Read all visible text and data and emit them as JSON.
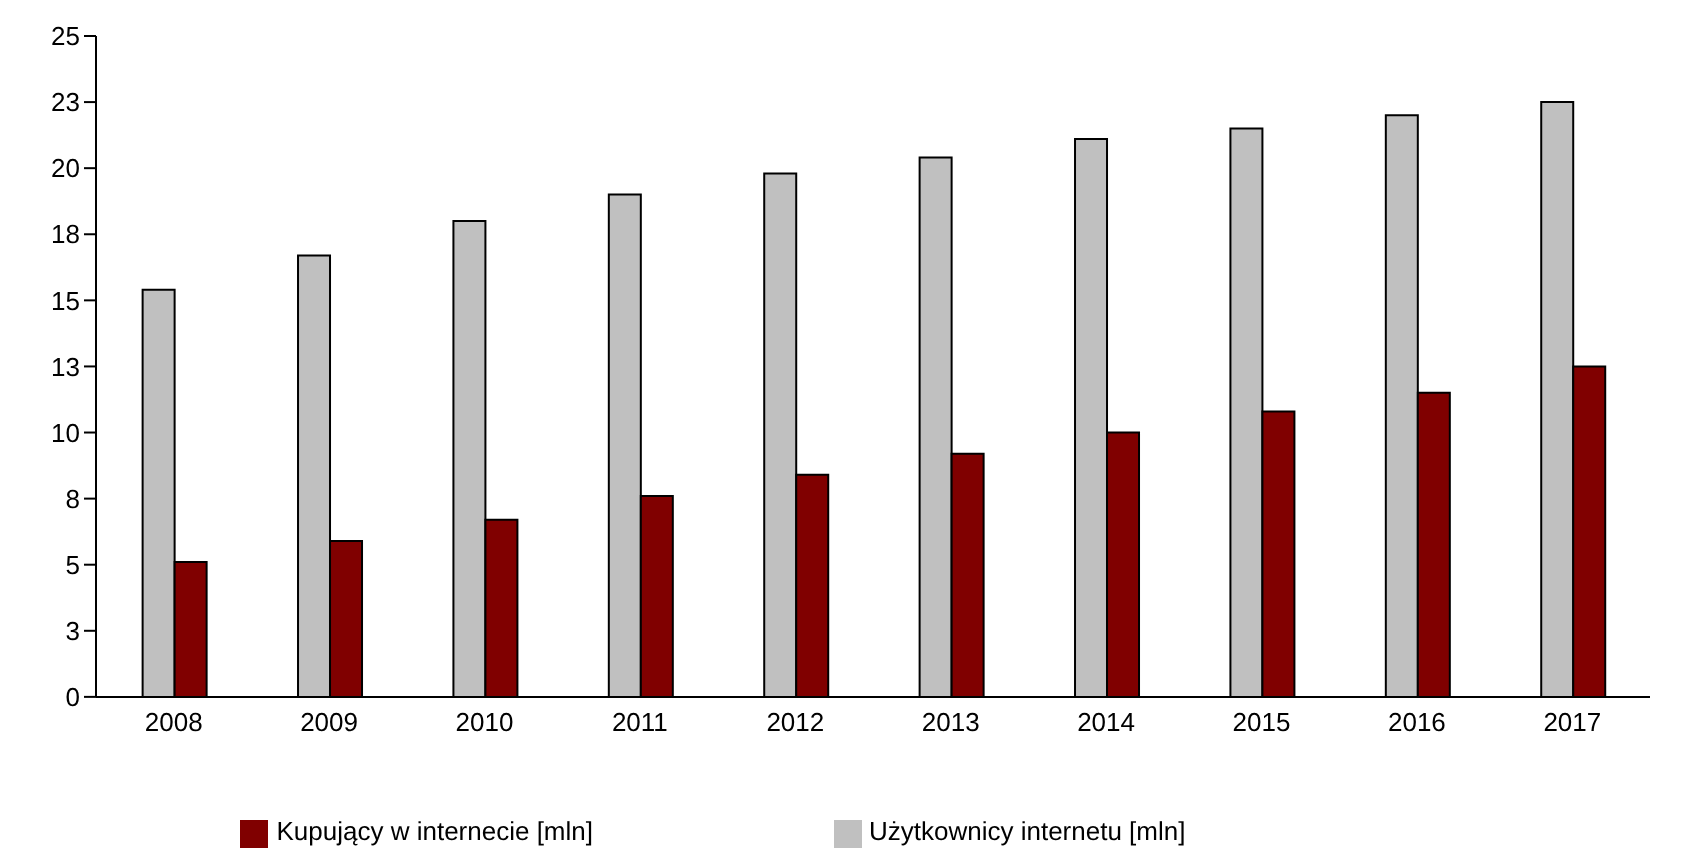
{
  "chart_data": {
    "type": "bar",
    "categories": [
      "2008",
      "2009",
      "2010",
      "2011",
      "2012",
      "2013",
      "2014",
      "2015",
      "2016",
      "2017"
    ],
    "series": [
      {
        "name": "Użytkownicy internetu [mln]",
        "color": "#c0c0c0",
        "values": [
          15.4,
          16.7,
          18.0,
          19.0,
          19.8,
          20.4,
          21.1,
          21.5,
          22.0,
          22.5
        ]
      },
      {
        "name": "Kupujący w internecie [mln]",
        "color": "#800000",
        "values": [
          5.1,
          5.9,
          6.7,
          7.6,
          8.4,
          9.2,
          10.0,
          10.8,
          11.5,
          12.5
        ]
      }
    ],
    "ylim": [
      0,
      25
    ],
    "yticks": [
      0,
      {
        "value": 2.5,
        "label": "3"
      },
      5,
      {
        "value": 7.5,
        "label": "8"
      },
      10,
      {
        "value": 12.5,
        "label": "13"
      },
      15,
      {
        "value": 17.5,
        "label": "18"
      },
      20,
      {
        "value": 22.5,
        "label": "23"
      },
      25
    ],
    "grid": false,
    "legend": "bottom"
  }
}
